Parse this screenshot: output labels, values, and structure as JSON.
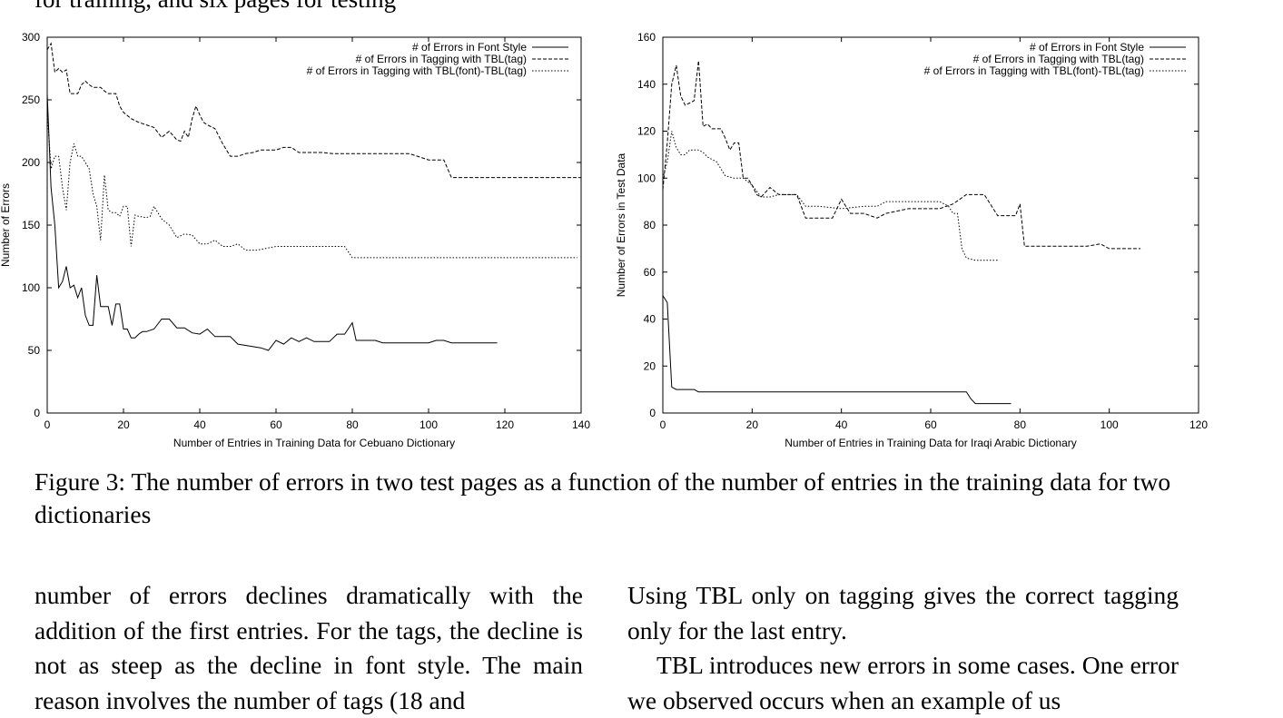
{
  "top_text": "for training, and six pages for testing",
  "chart_data": [
    {
      "type": "line",
      "xlabel": "Number of Entries in Training Data for Cebuano Dictionary",
      "ylabel": "Number of Errors",
      "xlim": [
        0,
        140
      ],
      "ylim": [
        0,
        300
      ],
      "xticks": [
        0,
        20,
        40,
        60,
        80,
        100,
        120,
        140
      ],
      "yticks": [
        0,
        50,
        100,
        150,
        200,
        250,
        300
      ],
      "legend": "top-right",
      "series": [
        {
          "name": "# of Errors in Font Style",
          "style": "solid",
          "x": [
            0,
            1,
            2,
            3,
            4,
            5,
            6,
            7,
            8,
            9,
            10,
            11,
            12,
            13,
            14,
            15,
            16,
            17,
            18,
            19,
            20,
            21,
            22,
            23,
            24,
            25,
            26,
            28,
            30,
            32,
            34,
            36,
            38,
            40,
            42,
            44,
            46,
            48,
            50,
            52,
            54,
            56,
            58,
            60,
            62,
            64,
            66,
            68,
            70,
            72,
            74,
            76,
            78,
            80,
            81,
            84,
            86,
            88,
            90,
            95,
            100,
            102,
            104,
            106,
            110,
            118
          ],
          "y": [
            255,
            180,
            150,
            100,
            105,
            117,
            100,
            102,
            92,
            100,
            78,
            70,
            70,
            110,
            85,
            85,
            85,
            70,
            87,
            87,
            67,
            67,
            60,
            60,
            63,
            65,
            65,
            67,
            75,
            75,
            68,
            68,
            64,
            63,
            67,
            61,
            61,
            61,
            55,
            54,
            53,
            52,
            50,
            58,
            55,
            60,
            57,
            60,
            57,
            57,
            57,
            63,
            63,
            72,
            58,
            58,
            58,
            56,
            56,
            56,
            56,
            58,
            58,
            56,
            56,
            56
          ]
        },
        {
          "name": "# of Errors in Tagging with TBL(tag)",
          "style": "dashed",
          "x": [
            0,
            1,
            2,
            3,
            4,
            5,
            6,
            7,
            8,
            9,
            10,
            11,
            12,
            13,
            14,
            15,
            16,
            17,
            18,
            19,
            20,
            22,
            24,
            26,
            28,
            30,
            32,
            34,
            35,
            36,
            37,
            38,
            39,
            40,
            41,
            42,
            44,
            46,
            48,
            50,
            52,
            54,
            56,
            58,
            60,
            62,
            64,
            66,
            68,
            70,
            72,
            75,
            80,
            85,
            90,
            95,
            100,
            104,
            106,
            110,
            120,
            130,
            140
          ],
          "y": [
            290,
            295,
            272,
            275,
            272,
            274,
            255,
            255,
            255,
            262,
            265,
            262,
            260,
            260,
            260,
            257,
            255,
            255,
            255,
            245,
            240,
            235,
            232,
            230,
            228,
            220,
            225,
            218,
            217,
            225,
            220,
            235,
            245,
            238,
            232,
            230,
            227,
            215,
            205,
            205,
            207,
            208,
            210,
            210,
            210,
            212,
            212,
            208,
            208,
            208,
            208,
            207,
            207,
            207,
            207,
            207,
            202,
            202,
            188,
            188,
            188,
            188,
            188
          ]
        },
        {
          "name": "# of Errors in Tagging with TBL(font)-TBL(tag)",
          "style": "dotted",
          "x": [
            0,
            1,
            2,
            3,
            4,
            5,
            6,
            7,
            8,
            9,
            10,
            11,
            12,
            13,
            14,
            15,
            16,
            17,
            18,
            19,
            20,
            21,
            22,
            23,
            24,
            26,
            27,
            28,
            30,
            32,
            34,
            36,
            38,
            40,
            42,
            44,
            46,
            48,
            50,
            52,
            55,
            60,
            65,
            70,
            75,
            78,
            80,
            85,
            90,
            100,
            110,
            120,
            130,
            139
          ],
          "y": [
            240,
            195,
            205,
            205,
            180,
            162,
            200,
            215,
            205,
            205,
            200,
            195,
            175,
            165,
            138,
            190,
            162,
            160,
            160,
            157,
            165,
            165,
            133,
            158,
            157,
            156,
            157,
            165,
            155,
            150,
            140,
            143,
            142,
            135,
            135,
            138,
            133,
            133,
            135,
            130,
            130,
            133,
            133,
            133,
            133,
            133,
            124,
            124,
            124,
            124,
            124,
            124,
            124,
            124
          ]
        }
      ]
    },
    {
      "type": "line",
      "xlabel": "Number of Entries in Training Data for Iraqi Arabic Dictionary",
      "ylabel": "Number of Errors in Test Data",
      "xlim": [
        0,
        120
      ],
      "ylim": [
        0,
        160
      ],
      "xticks": [
        0,
        20,
        40,
        60,
        80,
        100,
        120
      ],
      "yticks": [
        0,
        20,
        40,
        60,
        80,
        100,
        120,
        140,
        160
      ],
      "legend": "top-right",
      "series": [
        {
          "name": "# of Errors in Font Style",
          "style": "solid",
          "x": [
            0,
            1,
            2,
            3,
            5,
            7,
            8,
            10,
            20,
            30,
            40,
            50,
            60,
            68,
            69,
            70,
            72,
            75,
            78
          ],
          "y": [
            50,
            47,
            11,
            10,
            10,
            10,
            9,
            9,
            9,
            9,
            9,
            9,
            9,
            9,
            6,
            4,
            4,
            4,
            4
          ]
        },
        {
          "name": "# of Errors in Tagging with TBL(tag)",
          "style": "dashed",
          "x": [
            0,
            1,
            2,
            3,
            4,
            5,
            6,
            7,
            8,
            9,
            10,
            11,
            12,
            13,
            14,
            15,
            16,
            17,
            18,
            19,
            20,
            21,
            22,
            24,
            26,
            28,
            30,
            32,
            35,
            38,
            40,
            42,
            45,
            48,
            50,
            55,
            60,
            62,
            65,
            68,
            70,
            72,
            75,
            78,
            79,
            80,
            81,
            85,
            90,
            95,
            98,
            100,
            104,
            107
          ],
          "y": [
            95,
            115,
            140,
            148,
            135,
            131,
            132,
            133,
            150,
            122,
            123,
            121,
            121,
            121,
            117,
            112,
            115,
            115,
            100,
            100,
            97,
            93,
            92,
            96,
            93,
            93,
            93,
            83,
            83,
            83,
            91,
            85,
            85,
            83,
            85,
            87,
            87,
            87,
            89,
            93,
            93,
            93,
            84,
            84,
            84,
            89,
            71,
            71,
            71,
            71,
            72,
            70,
            70,
            70
          ]
        },
        {
          "name": "# of Errors in Tagging with TBL(font)-TBL(tag)",
          "style": "dotted",
          "x": [
            0,
            1,
            2,
            3,
            4,
            5,
            6,
            7,
            8,
            9,
            10,
            12,
            14,
            16,
            18,
            20,
            22,
            24,
            26,
            28,
            30,
            32,
            35,
            40,
            45,
            48,
            50,
            55,
            60,
            62,
            64,
            65,
            66,
            67,
            68,
            70,
            75
          ],
          "y": [
            100,
            107,
            120,
            113,
            110,
            110,
            112,
            112,
            112,
            111,
            109,
            107,
            101,
            100,
            100,
            97,
            92,
            92,
            93,
            93,
            93,
            88,
            88,
            87,
            88,
            88,
            90,
            90,
            90,
            90,
            88,
            85,
            85,
            70,
            66,
            65,
            65
          ]
        }
      ]
    }
  ],
  "caption": "Figure 3:  The number of errors in two test pages as a function of the number of entries in the training data for two dictionaries",
  "left_column": {
    "p1": "number of errors declines dramatically with the addition of the first entries. For the tags, the decline is not as steep as the decline in font style. The main reason involves the number of tags (18 and"
  },
  "right_column": {
    "p1": "Using TBL only on tagging gives the correct tagging only for the last entry.",
    "p2": "TBL introduces new errors in some cases. One error we observed occurs when an example of us"
  }
}
